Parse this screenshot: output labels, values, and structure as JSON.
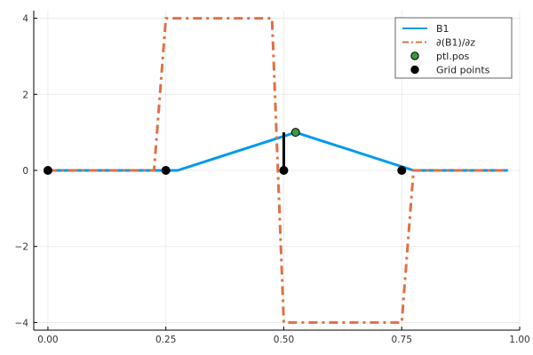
{
  "chart_data": {
    "type": "line",
    "xlim": [
      -0.03,
      1.0
    ],
    "ylim": [
      -4.2,
      4.2
    ],
    "xticks": [
      0.0,
      0.25,
      0.5,
      0.75,
      1.0
    ],
    "xtick_labels": [
      "0.00",
      "0.25",
      "0.50",
      "0.75",
      "1.00"
    ],
    "yticks": [
      -4,
      -2,
      0,
      2,
      4
    ],
    "ytick_labels": [
      "−4",
      "−2",
      "0",
      "2",
      "4"
    ],
    "grid": true,
    "legend_position": "top-right",
    "series": [
      {
        "name": "B1",
        "kind": "line",
        "color": "#0099ee",
        "style": "solid",
        "x": [
          0.0,
          0.275,
          0.525,
          0.775,
          0.975
        ],
        "y": [
          0,
          0,
          1,
          0,
          0
        ]
      },
      {
        "name": "∂(B1)/∂z",
        "kind": "line",
        "color": "#e07045",
        "style": "dashdot",
        "x": [
          0.0,
          0.225,
          0.25,
          0.475,
          0.5,
          0.75,
          0.775,
          0.975
        ],
        "y": [
          0,
          0,
          4,
          4,
          -4,
          -4,
          0,
          0
        ]
      },
      {
        "name": "ptl.pos",
        "kind": "scatter",
        "color": "#3a9a3a",
        "x": [
          0.525
        ],
        "y": [
          1.0
        ]
      },
      {
        "name": "Grid points",
        "kind": "scatter",
        "color": "#000000",
        "x": [
          0.0,
          0.25,
          0.5,
          0.75
        ],
        "y": [
          0,
          0,
          0,
          0
        ]
      }
    ],
    "stems": [
      {
        "x": 0.5,
        "y0": 0,
        "y1": 1.0,
        "color": "#000000"
      }
    ]
  }
}
